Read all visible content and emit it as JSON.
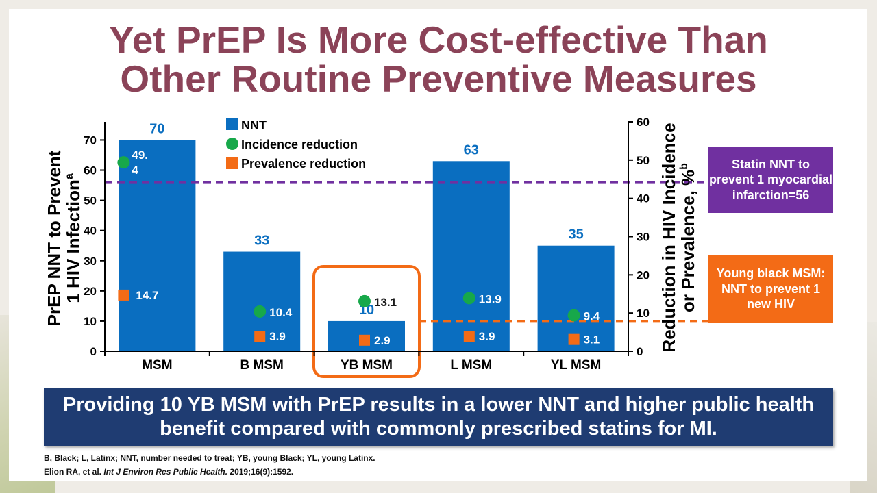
{
  "title": {
    "line1": "Yet PrEP Is More Cost-effective Than",
    "line2": "Other Routine Preventive Measures"
  },
  "chart_data": {
    "type": "bar",
    "categories": [
      "MSM",
      "B MSM",
      "YB MSM",
      "L MSM",
      "YL MSM"
    ],
    "series": [
      {
        "name": "NNT",
        "kind": "bar",
        "axis": "left",
        "values": [
          70,
          33,
          10,
          63,
          35
        ],
        "labels": [
          "70",
          "33",
          "10",
          "63",
          "35"
        ],
        "color": "#0a6ec0"
      },
      {
        "name": "Incidence reduction",
        "kind": "marker",
        "axis": "right",
        "values": [
          49.4,
          10.4,
          13.1,
          13.9,
          9.4
        ],
        "labels": [
          "49.\n4",
          "10.4",
          "13.1",
          "13.9",
          "9.4"
        ],
        "color": "#17a84a"
      },
      {
        "name": "Prevalence reduction",
        "kind": "marker",
        "axis": "right",
        "values": [
          14.7,
          3.9,
          2.9,
          3.9,
          3.1
        ],
        "labels": [
          "14.7",
          "3.9",
          "2.9",
          "3.9",
          "3.1"
        ],
        "color": "#f36b16"
      }
    ],
    "ylabel_left": [
      "PrEP NNT to Prevent",
      "1 HIV Infection",
      "a"
    ],
    "ylabel_right": [
      "Reduction in HIV Incidence",
      "or Prevalence, %",
      "b"
    ],
    "ylim_left": [
      0,
      76
    ],
    "yticks_left": [
      0,
      10,
      20,
      30,
      40,
      50,
      60,
      70
    ],
    "ylim_right": [
      0,
      60
    ],
    "yticks_right": [
      0,
      10,
      20,
      30,
      40,
      50,
      60
    ],
    "reference_lines": [
      {
        "name": "statin",
        "value": 56,
        "axis": "left",
        "color": "#7030a0",
        "style": "dashed"
      },
      {
        "name": "young-black",
        "value": 10,
        "axis": "left",
        "color": "#f36b16",
        "style": "dashed",
        "from_category": "YB MSM"
      }
    ],
    "highlight_category": "YB MSM",
    "legend_position": "top-center"
  },
  "callouts": {
    "statin": "Statin NNT to prevent 1 myocardial infarction=56",
    "young_black": "Young black MSM: NNT to prevent 1 new HIV"
  },
  "banner": "Providing 10 YB MSM with PrEP results in a lower NNT and higher public health benefit compared with commonly prescribed statins for MI.",
  "footnotes": {
    "abbrev": "B, Black; L, Latinx; NNT, number needed to treat; YB, young Black; YL, young Latinx.",
    "cite_authors": "Elion RA, et al.",
    "cite_journal": "Int J Environ Res Public Health.",
    "cite_details": "2019;16(9):1592."
  }
}
